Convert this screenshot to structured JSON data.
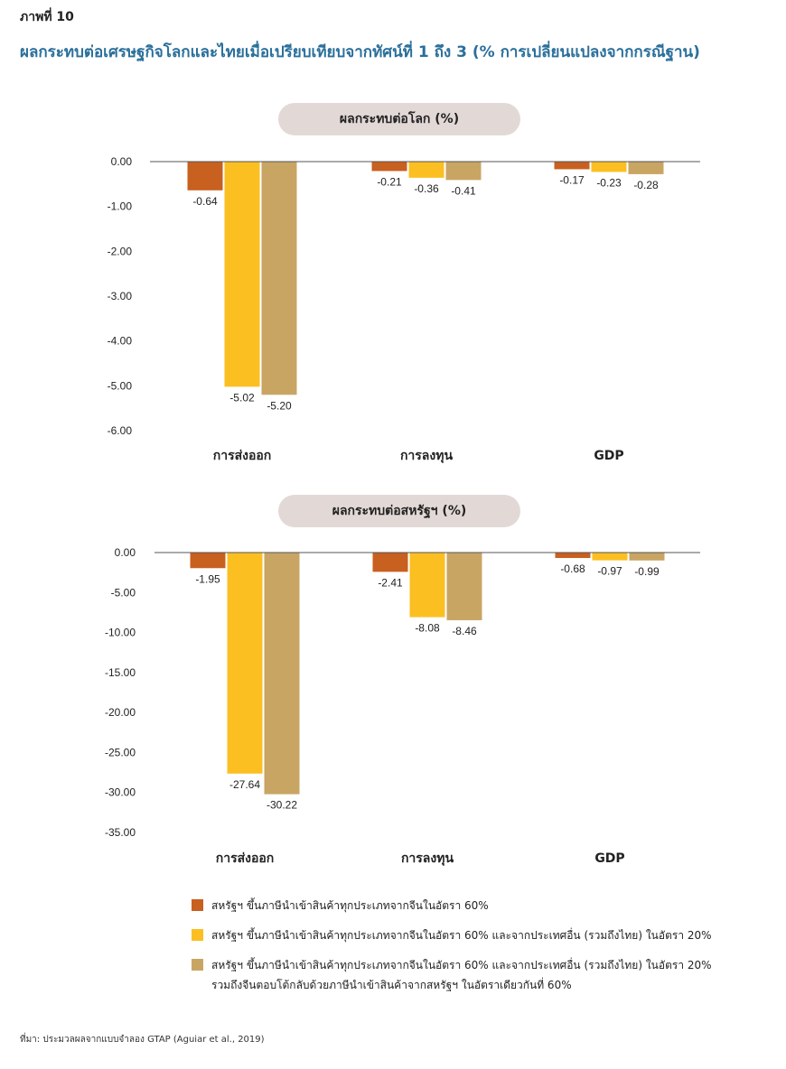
{
  "figure_label": "ภาพที่ 10",
  "figure_title": "ผลกระทบต่อเศรษฐกิจโลกและไทยเมื่อเปรียบเทียบจากทัศน์ที่ 1 ถึง 3 (% การเปลี่ยนแปลงจากกรณีฐาน)",
  "colors": {
    "series_1": "#c8601f",
    "series_2": "#fbbf22",
    "series_3": "#c9a564"
  },
  "legend": [
    {
      "text": "สหรัฐฯ ขึ้นภาษีนำเข้าสินค้าทุกประเภทจากจีนในอัตรา 60%"
    },
    {
      "text": "สหรัฐฯ ขึ้นภาษีนำเข้าสินค้าทุกประเภทจากจีนในอัตรา 60% และจากประเทศอื่น (รวมถึงไทย) ในอัตรา 20%"
    },
    {
      "text": "สหรัฐฯ ขึ้นภาษีนำเข้าสินค้าทุกประเภทจากจีนในอัตรา 60% และจากประเทศอื่น (รวมถึงไทย) ในอัตรา 20%",
      "text2": "รวมถึงจีนตอบโต้กลับด้วยภาษีนำเข้าสินค้าจากสหรัฐฯ ในอัตราเดียวกันที่ 60%"
    }
  ],
  "source": "ที่มา: ประมวลผลจากแบบจำลอง GTAP (Aguiar et al., 2019)",
  "chart_data": [
    {
      "type": "bar",
      "title": "ผลกระทบต่อโลก (%)",
      "categories": [
        "การส่งออก",
        "การลงทุน",
        "GDP"
      ],
      "series": [
        {
          "values": [
            -0.64,
            -0.21,
            -0.17
          ]
        },
        {
          "values": [
            -5.02,
            -0.36,
            -0.23
          ]
        },
        {
          "values": [
            -5.2,
            -0.41,
            -0.28
          ]
        }
      ],
      "value_labels": [
        [
          "-0.64",
          "-0.21",
          "-0.17"
        ],
        [
          "-5.02",
          "-0.36",
          "-0.23"
        ],
        [
          "-5.20",
          "-0.41",
          "-0.28"
        ]
      ],
      "ylim": [
        -6,
        0
      ],
      "yticks": [
        0,
        -1,
        -2,
        -3,
        -4,
        -5,
        -6
      ],
      "ytick_labels": [
        "0.00",
        "-1.00",
        "-2.00",
        "-3.00",
        "-4.00",
        "-5.00",
        "-6.00"
      ],
      "grid": false,
      "legend_position": "bottom"
    },
    {
      "type": "bar",
      "title": "ผลกระทบต่อสหรัฐฯ (%)",
      "categories": [
        "การส่งออก",
        "การลงทุน",
        "GDP"
      ],
      "series": [
        {
          "values": [
            -1.95,
            -2.41,
            -0.68
          ]
        },
        {
          "values": [
            -27.64,
            -8.08,
            -0.97
          ]
        },
        {
          "values": [
            -30.22,
            -8.46,
            -0.99
          ]
        }
      ],
      "value_labels": [
        [
          "-1.95",
          "-2.41",
          "-0.68"
        ],
        [
          "-27.64",
          "-8.08",
          "-0.97"
        ],
        [
          "-30.22",
          "-8.46",
          "-0.99"
        ]
      ],
      "ylim": [
        -35,
        0
      ],
      "yticks": [
        0,
        -5,
        -10,
        -15,
        -20,
        -25,
        -30,
        -35
      ],
      "ytick_labels": [
        "0.00",
        "-5.00",
        "-10.00",
        "-15.00",
        "-20.00",
        "-25.00",
        "-30.00",
        "-35.00"
      ],
      "grid": false,
      "legend_position": "bottom"
    }
  ]
}
